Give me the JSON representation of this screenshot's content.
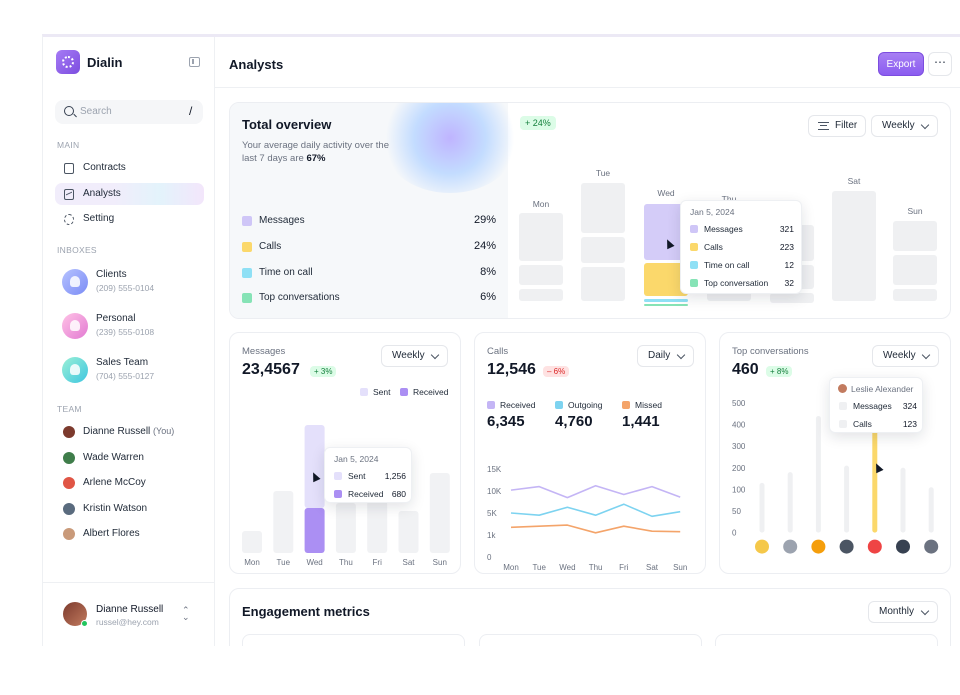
{
  "app": {
    "name": "Dialin",
    "page_title": "Analysts"
  },
  "header": {
    "export_label": "Export",
    "more_label": "⋯"
  },
  "search": {
    "placeholder": "Search",
    "shortcut": "/"
  },
  "sidebar": {
    "main_label": "MAIN",
    "nav": [
      {
        "label": "Contracts",
        "icon": "document-icon",
        "active": false
      },
      {
        "label": "Analysts",
        "icon": "chart-icon",
        "active": true
      },
      {
        "label": "Setting",
        "icon": "gear-icon",
        "active": false
      }
    ],
    "inboxes_label": "INBOXES",
    "inboxes": [
      {
        "name": "Clients",
        "phone": "(209) 555-0104",
        "color": "#8b9cf7"
      },
      {
        "name": "Personal",
        "phone": "(239) 555-0108",
        "color": "#f29bd6"
      },
      {
        "name": "Sales Team",
        "phone": "(704) 555-0127",
        "color": "#5fd4c8"
      }
    ],
    "team_label": "TEAM",
    "team": [
      {
        "name": "Dianne Russell",
        "tag": "(You)"
      },
      {
        "name": "Wade Warren",
        "tag": ""
      },
      {
        "name": "Arlene McCoy",
        "tag": ""
      },
      {
        "name": "Kristin Watson",
        "tag": ""
      },
      {
        "name": "Albert Flores",
        "tag": ""
      }
    ],
    "user": {
      "name": "Dianne Russell",
      "email": "russel@hey.com"
    }
  },
  "overview": {
    "title": "Total overview",
    "subtitle": "Your average daily activity over the last 7 days are",
    "subtitle_value": "67%",
    "legend": [
      {
        "label": "Messages",
        "value": "29%",
        "color": "#cfc6f7"
      },
      {
        "label": "Calls",
        "value": "24%",
        "color": "#fbd86b"
      },
      {
        "label": "Time on call",
        "value": "8%",
        "color": "#8fe0f5"
      },
      {
        "label": "Top conversations",
        "value": "6%",
        "color": "#86e3b6"
      }
    ],
    "badge": "+ 24%",
    "filter_label": "Filter",
    "period": "Weekly",
    "days": [
      "Mon",
      "Tue",
      "Wed",
      "Thu",
      "Fri",
      "Sat",
      "Sun"
    ],
    "tooltip": {
      "date": "Jan 5, 2024",
      "rows": [
        {
          "label": "Messages",
          "value": "321"
        },
        {
          "label": "Calls",
          "value": "223"
        },
        {
          "label": "Time on call",
          "value": "12"
        },
        {
          "label": "Top conversation",
          "value": "32"
        }
      ]
    }
  },
  "messages": {
    "label": "Messages",
    "value": "23,4567",
    "badge": "+ 3%",
    "period": "Weekly",
    "legend": [
      {
        "label": "Sent",
        "color": "#e4e0fb"
      },
      {
        "label": "Received",
        "color": "#ab8ff3"
      }
    ],
    "tooltip": {
      "date": "Jan 5, 2024",
      "sent_label": "Sent",
      "sent_value": "1,256",
      "received_label": "Received",
      "received_value": "680"
    }
  },
  "calls": {
    "label": "Calls",
    "value": "12,546",
    "badge": "– 6%",
    "period": "Daily",
    "stats": [
      {
        "label": "Received",
        "value": "6,345",
        "color": "#c4b5f5"
      },
      {
        "label": "Outgoing",
        "value": "4,760",
        "color": "#7dd3f0"
      },
      {
        "label": "Missed",
        "value": "1,441",
        "color": "#f4a46a"
      }
    ]
  },
  "top_conversations": {
    "label": "Top conversations",
    "value": "460",
    "badge": "+ 8%",
    "period": "Weekly",
    "tooltip": {
      "name": "Leslie Alexander",
      "rows": [
        {
          "label": "Messages",
          "value": "324"
        },
        {
          "label": "Calls",
          "value": "123"
        }
      ]
    }
  },
  "engagement": {
    "title": "Engagement metrics",
    "period": "Monthly"
  },
  "chart_data": [
    {
      "type": "bar",
      "title": "Total overview",
      "categories": [
        "Mon",
        "Tue",
        "Wed",
        "Thu",
        "Fri",
        "Sat",
        "Sun"
      ],
      "series": [
        {
          "name": "Messages",
          "values": [
            null,
            null,
            321,
            null,
            null,
            null,
            null
          ]
        },
        {
          "name": "Calls",
          "values": [
            null,
            null,
            223,
            null,
            null,
            null,
            null
          ]
        },
        {
          "name": "Time on call",
          "values": [
            null,
            null,
            12,
            null,
            null,
            null,
            null
          ]
        },
        {
          "name": "Top conversation",
          "values": [
            null,
            null,
            32,
            null,
            null,
            null,
            null
          ]
        }
      ]
    },
    {
      "type": "bar",
      "title": "Messages",
      "categories": [
        "Mon",
        "Tue",
        "Wed",
        "Thu",
        "Fri",
        "Sat",
        "Sun"
      ],
      "series": [
        {
          "name": "Sent",
          "values": [
            null,
            null,
            1256,
            null,
            null,
            null,
            null
          ]
        },
        {
          "name": "Received",
          "values": [
            null,
            null,
            680,
            null,
            null,
            null,
            null
          ]
        }
      ]
    },
    {
      "type": "line",
      "title": "Calls",
      "categories": [
        "Mon",
        "Tue",
        "Wed",
        "Thu",
        "Fri",
        "Sat",
        "Sun"
      ],
      "ylim": [
        0,
        15000
      ],
      "yticks": [
        "0",
        "1k",
        "5K",
        "10K",
        "15K"
      ],
      "series": [
        {
          "name": "Received",
          "values": [
            10200,
            11000,
            8500,
            11200,
            9200,
            11000,
            8600
          ]
        },
        {
          "name": "Outgoing",
          "values": [
            5000,
            4600,
            6300,
            4600,
            7000,
            4400,
            5300
          ]
        },
        {
          "name": "Missed",
          "values": [
            2400,
            2600,
            2800,
            1400,
            2600,
            1700,
            1600
          ]
        }
      ]
    },
    {
      "type": "bar",
      "title": "Top conversations",
      "ylim": [
        0,
        500
      ],
      "yticks": [
        "0",
        "50",
        "100",
        "200",
        "300",
        "400",
        "500"
      ],
      "series": [
        {
          "name": "Leslie Alexander",
          "values": [
            null,
            null,
            null,
            null,
            460,
            null,
            null
          ]
        }
      ]
    }
  ]
}
